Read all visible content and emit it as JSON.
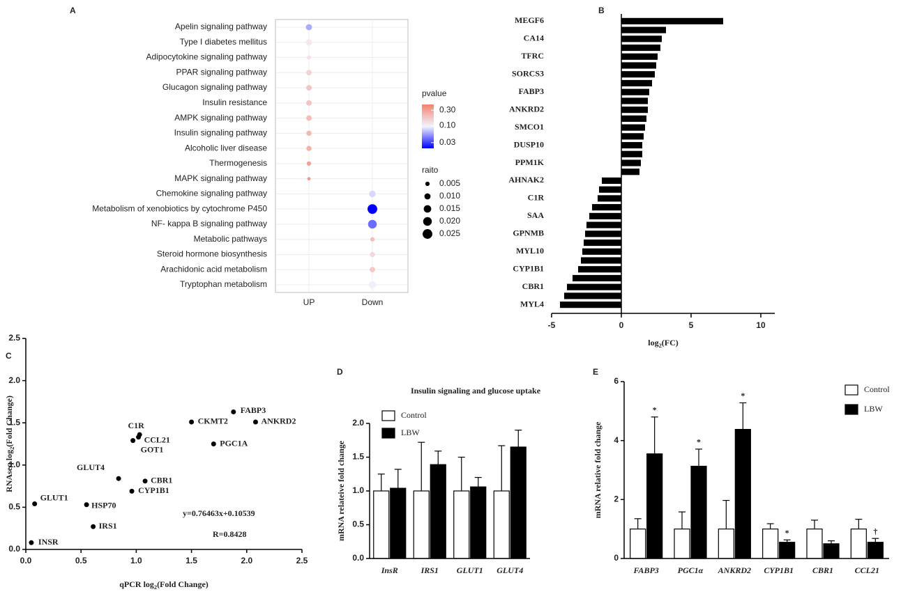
{
  "chart_data": [
    {
      "panel": "A",
      "type": "dot",
      "categories": [
        "Apelin signaling pathway",
        "Type I diabetes mellitus",
        "Adipocytokine signaling pathway",
        "PPAR signaling pathway",
        "Glucagon signaling pathway",
        "Insulin resistance",
        "AMPK signaling pathway",
        "Insulin signaling pathway",
        "Alcoholic liver disease",
        "Thermogenesis",
        "MAPK signaling pathway",
        "Chemokine signaling pathway",
        "Metabolism of xenobiotics by cytochrome P450",
        "NF- kappa B signaling pathway",
        "Metabolic pathways",
        "Steroid hormone biosynthesis",
        "Arachidonic acid metabolism",
        "Tryptophan metabolism"
      ],
      "x_categories": [
        "UP",
        "Down"
      ],
      "columns": [
        "UP",
        "UP",
        "UP",
        "UP",
        "UP",
        "UP",
        "UP",
        "UP",
        "UP",
        "UP",
        "UP",
        "Down",
        "Down",
        "Down",
        "Down",
        "Down",
        "Down",
        "Down"
      ],
      "pvalue": [
        0.06,
        0.11,
        0.12,
        0.15,
        0.18,
        0.18,
        0.2,
        0.22,
        0.24,
        0.3,
        0.33,
        0.08,
        0.02,
        0.04,
        0.2,
        0.14,
        0.17,
        0.1
      ],
      "ratio": [
        0.01,
        0.01,
        0.005,
        0.008,
        0.008,
        0.008,
        0.008,
        0.007,
        0.007,
        0.005,
        0.003,
        0.012,
        0.025,
        0.02,
        0.005,
        0.007,
        0.008,
        0.014
      ],
      "color_title": "pvalue",
      "color_scale": "log",
      "clim": [
        0.02,
        0.45
      ],
      "colors": [
        "#0000ff",
        "#f3f3ff",
        "#f4826c"
      ],
      "color_ticks": [
        {
          "value": 0.3,
          "label": "0.30"
        },
        {
          "value": 0.1,
          "label": "0.10"
        },
        0.03
      ],
      "size_title": "raito",
      "size_ticks": [
        0.005,
        {
          "value": 0.01,
          "label": "0.010"
        },
        0.015,
        {
          "value": 0.02,
          "label": "0.020"
        },
        0.025
      ],
      "grid": true
    },
    {
      "panel": "B",
      "type": "hbar",
      "categories": [
        "MEGF6",
        null,
        "CA14",
        null,
        "TFRC",
        null,
        "SORCS3",
        null,
        "FABP3",
        null,
        "ANKRD2",
        null,
        "SMCO1",
        null,
        "DUSP10",
        null,
        "PPM1K",
        null,
        "AHNAK2",
        null,
        "C1R",
        null,
        "SAA",
        null,
        "GPNMB",
        null,
        "MYL10",
        null,
        "CYP1B1",
        null,
        "CBR1",
        null,
        "MYL4"
      ],
      "values": [
        7.3,
        3.2,
        2.9,
        2.8,
        2.6,
        2.5,
        2.4,
        2.2,
        2.0,
        1.9,
        1.9,
        1.8,
        1.7,
        1.6,
        1.5,
        1.5,
        1.4,
        1.3,
        -1.4,
        -1.6,
        -1.7,
        -2.1,
        -2.3,
        -2.5,
        -2.6,
        -2.7,
        -2.8,
        -2.9,
        -3.1,
        -3.5,
        -3.9,
        -4.1,
        -4.4
      ],
      "color": "#000000",
      "xlim": [
        -5,
        11
      ],
      "xticks": [
        -5,
        0,
        5,
        10
      ],
      "xlabel": [
        "log",
        "2",
        "(FC)"
      ]
    },
    {
      "panel": "C",
      "type": "scatter",
      "point_labels": [
        "INSR",
        "GLUT1",
        "HSP70",
        "IRS1",
        "GLUT4",
        "CYP1B1",
        "CBR1",
        "GOT1",
        "C1R",
        "CCL21",
        "PGC1A",
        "CKMT2",
        "FABP3",
        "ANKRD2"
      ],
      "x": [
        0.05,
        0.08,
        0.55,
        0.61,
        0.84,
        0.96,
        1.08,
        0.97,
        1.03,
        1.02,
        1.7,
        1.5,
        1.88,
        2.08
      ],
      "y": [
        0.08,
        0.54,
        0.53,
        0.27,
        0.84,
        0.69,
        0.81,
        1.29,
        1.36,
        1.33,
        1.25,
        1.51,
        1.63,
        1.51
      ],
      "color": "#000000",
      "annotations": [
        "y=0.76463x+0.10539",
        "R=0.8428"
      ],
      "xlabel": [
        "qPCR log",
        "2",
        "(Fold Change)"
      ],
      "ylabel": [
        "RNAseq log",
        "2",
        "(Fold Change)"
      ],
      "xlim": [
        0,
        2.5
      ],
      "ylim": [
        0,
        2.5
      ],
      "xticks": [
        {
          "value": 0,
          "label": "0.0"
        },
        0.5,
        {
          "value": 1,
          "label": "1.0"
        },
        1.5,
        {
          "value": 2,
          "label": "2.0"
        },
        2.5
      ],
      "yticks": [
        {
          "value": 0,
          "label": "0.0"
        },
        0.5,
        {
          "value": 1,
          "label": "1.0"
        },
        1.5,
        {
          "value": 2,
          "label": "2.0"
        },
        2.5
      ]
    },
    {
      "panel": "D",
      "type": "grouped_bar",
      "title": "Insulin signaling and glucose uptake",
      "categories": [
        "InsR",
        "IRS1",
        "GLUT1",
        "GLUT4"
      ],
      "italic_categories": true,
      "series": [
        {
          "name": "Control",
          "color": "#ffffff",
          "values": [
            1,
            1,
            1,
            1
          ],
          "errors": [
            0.25,
            0.72,
            0.5,
            0.67
          ]
        },
        {
          "name": "LBW",
          "color": "#000000",
          "values": [
            1.04,
            1.39,
            1.06,
            1.65
          ],
          "errors": [
            0.28,
            0.2,
            0.14,
            0.25
          ]
        }
      ],
      "ylabel": "mRNA relateive fold change",
      "ylim": [
        0,
        2
      ],
      "yticks": [
        {
          "value": 0,
          "label": "0.0"
        },
        0.5,
        {
          "value": 1,
          "label": "1.0"
        },
        1.5,
        {
          "value": 2,
          "label": "2.0"
        }
      ]
    },
    {
      "panel": "E",
      "type": "grouped_bar",
      "categories": [
        "FABP3",
        "PGC1α",
        "ANKRD2",
        "CYP1B1",
        "CBR1",
        "CCL21"
      ],
      "italic_categories": true,
      "series": [
        {
          "name": "Control",
          "color": "#ffffff",
          "values": [
            1,
            1,
            1,
            1,
            1,
            1
          ],
          "errors": [
            0.35,
            0.58,
            0.97,
            0.18,
            0.3,
            0.33
          ]
        },
        {
          "name": "LBW",
          "color": "#000000",
          "values": [
            3.55,
            3.13,
            4.38,
            0.55,
            0.5,
            0.55
          ],
          "errors": [
            1.25,
            0.58,
            0.9,
            0.08,
            0.1,
            0.13
          ],
          "annotations": [
            "*",
            "*",
            "*",
            "*",
            null,
            "†"
          ]
        }
      ],
      "ylabel": "mRNA relative fold change",
      "ylim": [
        0,
        6
      ],
      "yticks": [
        0,
        2,
        4,
        6
      ]
    }
  ]
}
